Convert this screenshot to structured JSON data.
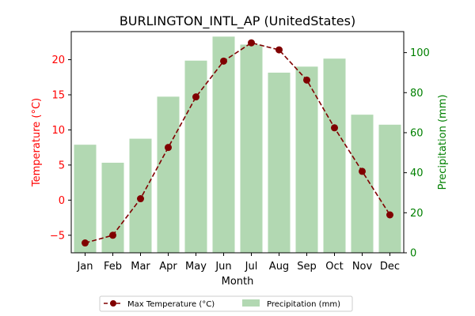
{
  "chart_data": {
    "type": "bar",
    "title": "BURLINGTON_INTL_AP (UnitedStates)",
    "xlabel": "Month",
    "categories": [
      "Jan",
      "Feb",
      "Mar",
      "Apr",
      "May",
      "Jun",
      "Jul",
      "Aug",
      "Sep",
      "Oct",
      "Nov",
      "Dec"
    ],
    "left_axis": {
      "label": "Temperature (°C)",
      "ylim": [
        -7.5,
        24.0
      ],
      "ticks": [
        -5,
        0,
        5,
        10,
        15,
        20
      ],
      "color": "#ff0000"
    },
    "right_axis": {
      "label": "Precipitation (mm)",
      "ylim": [
        0,
        110.5
      ],
      "ticks": [
        0,
        20,
        40,
        60,
        80,
        100
      ],
      "color": "#008000"
    },
    "series": [
      {
        "name": "Max Temperature (°C)",
        "type": "line",
        "axis": "left",
        "color": "#800000",
        "values": [
          -6.1,
          -5.0,
          0.2,
          7.5,
          14.7,
          19.8,
          22.4,
          21.4,
          17.1,
          10.3,
          4.1,
          -2.1
        ]
      },
      {
        "name": "Precipitation (mm)",
        "type": "bar",
        "axis": "right",
        "color": "#b2d8b2",
        "values": [
          54,
          45,
          57,
          78,
          96,
          108,
          104,
          90,
          93,
          97,
          69,
          64
        ]
      }
    ],
    "legend_position": "bottom-center",
    "grid": false
  }
}
